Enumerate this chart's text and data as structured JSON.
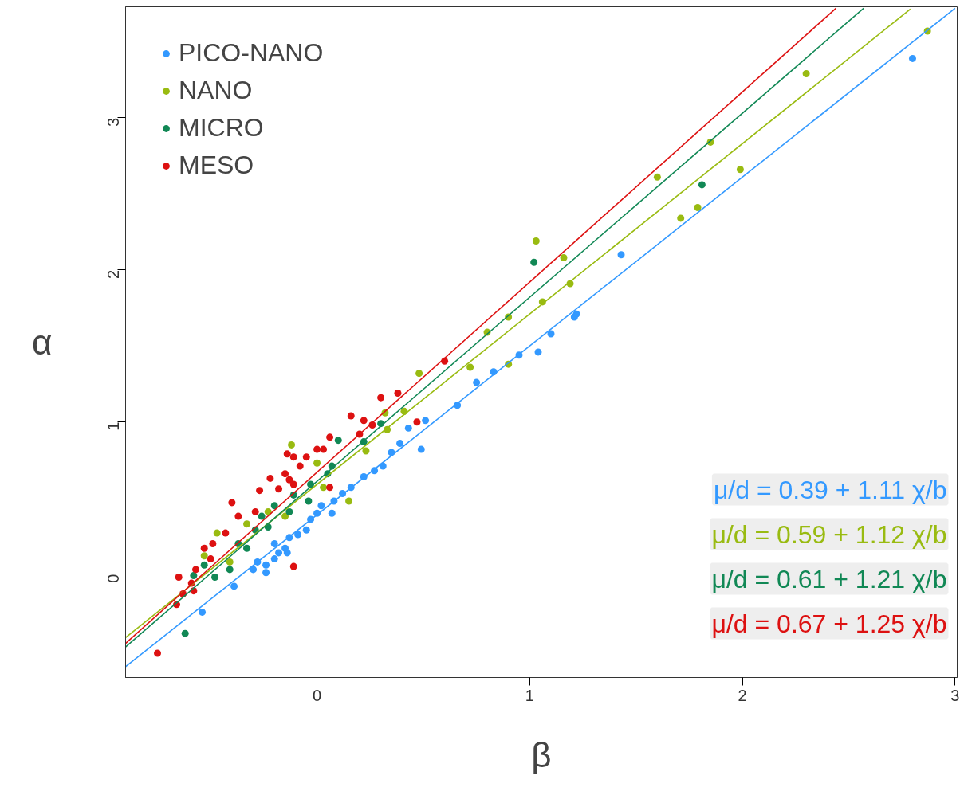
{
  "chart_data": {
    "type": "scatter",
    "xlabel": "β",
    "ylabel": "α",
    "xlim": [
      -0.9,
      3.01
    ],
    "ylim": [
      -0.68,
      3.73
    ],
    "xticks": [
      0,
      1,
      2,
      3
    ],
    "yticks": [
      0,
      1,
      2,
      3
    ],
    "grid": false,
    "legend": "top left",
    "marker": "circle",
    "series": [
      {
        "name": "PICO-NANO",
        "color": "#3399ff",
        "x": [
          2.8,
          1.43,
          1.22,
          1.21,
          1.1,
          1.04,
          0.95,
          0.83,
          0.75,
          0.66,
          0.51,
          0.43,
          0.39,
          0.49,
          0.35,
          0.31,
          0.27,
          0.22,
          0.16,
          0.12,
          0.08,
          0.07,
          0.02,
          0.0,
          -0.03,
          -0.05,
          -0.09,
          -0.13,
          -0.15,
          -0.18,
          -0.2,
          -0.24,
          -0.24,
          -0.28,
          -0.3,
          -0.14,
          -0.2,
          -0.39,
          -0.54
        ],
        "values": [
          3.39,
          2.1,
          1.71,
          1.69,
          1.58,
          1.46,
          1.44,
          1.33,
          1.26,
          1.11,
          1.01,
          0.96,
          0.86,
          0.82,
          0.8,
          0.71,
          0.68,
          0.64,
          0.57,
          0.53,
          0.48,
          0.4,
          0.45,
          0.4,
          0.36,
          0.29,
          0.26,
          0.24,
          0.17,
          0.14,
          0.1,
          0.06,
          0.01,
          0.08,
          0.03,
          0.14,
          0.2,
          -0.08,
          -0.25
        ]
      },
      {
        "name": "NANO",
        "color": "#99bb11",
        "x": [
          2.87,
          2.3,
          1.85,
          1.6,
          1.99,
          1.71,
          1.79,
          1.03,
          1.16,
          1.19,
          1.06,
          0.9,
          0.8,
          0.72,
          0.9,
          0.48,
          0.41,
          0.32,
          0.33,
          0.23,
          0.15,
          0.03,
          -0.12,
          -0.47,
          -0.53,
          -0.41,
          -0.33,
          -0.15,
          -0.23,
          0.0
        ],
        "values": [
          3.57,
          3.29,
          2.84,
          2.61,
          2.66,
          2.34,
          2.41,
          2.19,
          2.08,
          1.91,
          1.79,
          1.69,
          1.59,
          1.36,
          1.38,
          1.32,
          1.07,
          1.06,
          0.95,
          0.81,
          0.48,
          0.57,
          0.85,
          0.27,
          0.12,
          0.08,
          0.33,
          0.38,
          0.41,
          0.73
        ]
      },
      {
        "name": "MICRO",
        "color": "#118855",
        "x": [
          1.02,
          1.81,
          -0.62,
          0.1,
          0.07,
          0.05,
          -0.03,
          -0.11,
          -0.2,
          -0.26,
          -0.29,
          -0.37,
          -0.41,
          -0.48,
          -0.53,
          -0.58,
          -0.33,
          -0.23,
          -0.13,
          -0.04,
          0.3,
          0.22
        ],
        "values": [
          2.05,
          2.56,
          -0.39,
          0.88,
          0.71,
          0.66,
          0.59,
          0.52,
          0.45,
          0.38,
          0.29,
          0.2,
          0.03,
          -0.02,
          0.06,
          -0.01,
          0.17,
          0.31,
          0.41,
          0.48,
          0.99,
          0.87
        ]
      },
      {
        "name": "MESO",
        "color": "#dd1111",
        "x": [
          -0.75,
          0.6,
          0.47,
          0.38,
          0.3,
          0.16,
          0.22,
          0.26,
          0.2,
          0.06,
          0.0,
          0.03,
          -0.05,
          -0.11,
          -0.14,
          -0.08,
          -0.22,
          -0.18,
          -0.13,
          -0.27,
          -0.15,
          -0.11,
          -0.4,
          -0.29,
          -0.37,
          -0.43,
          -0.49,
          -0.53,
          -0.5,
          -0.57,
          -0.59,
          -0.65,
          -0.63,
          -0.66,
          -0.58,
          -0.11,
          0.06
        ],
        "values": [
          -0.52,
          1.4,
          1.0,
          1.19,
          1.16,
          1.04,
          1.01,
          0.98,
          0.92,
          0.9,
          0.82,
          0.82,
          0.77,
          0.77,
          0.79,
          0.71,
          0.63,
          0.56,
          0.62,
          0.55,
          0.66,
          0.59,
          0.47,
          0.41,
          0.38,
          0.27,
          0.2,
          0.17,
          0.1,
          0.03,
          -0.06,
          -0.02,
          -0.13,
          -0.2,
          -0.11,
          0.05,
          0.57
        ]
      },
      {
        "type": "line",
        "marker": "none",
        "color": "#3399ff",
        "x": [
          -0.9,
          3.0
        ],
        "values": [
          -0.609,
          3.72
        ]
      },
      {
        "type": "line",
        "marker": "none",
        "color": "#99bb11",
        "x": [
          -0.9,
          2.79
        ],
        "values": [
          -0.418,
          3.715
        ]
      },
      {
        "type": "line",
        "marker": "none",
        "color": "#118855",
        "x": [
          -0.9,
          2.57
        ],
        "values": [
          -0.479,
          3.72
        ]
      },
      {
        "type": "line",
        "marker": "none",
        "color": "#dd1111",
        "x": [
          -0.9,
          2.44
        ],
        "values": [
          -0.455,
          3.72
        ]
      }
    ],
    "annotations": [
      "μ/d = 0.39 + 1.11 χ/b",
      "μ/d = 0.59 + 1.12 χ/b",
      "μ/d = 0.61 + 1.21 χ/b",
      "μ/d = 0.67 + 1.25 χ/b"
    ]
  }
}
